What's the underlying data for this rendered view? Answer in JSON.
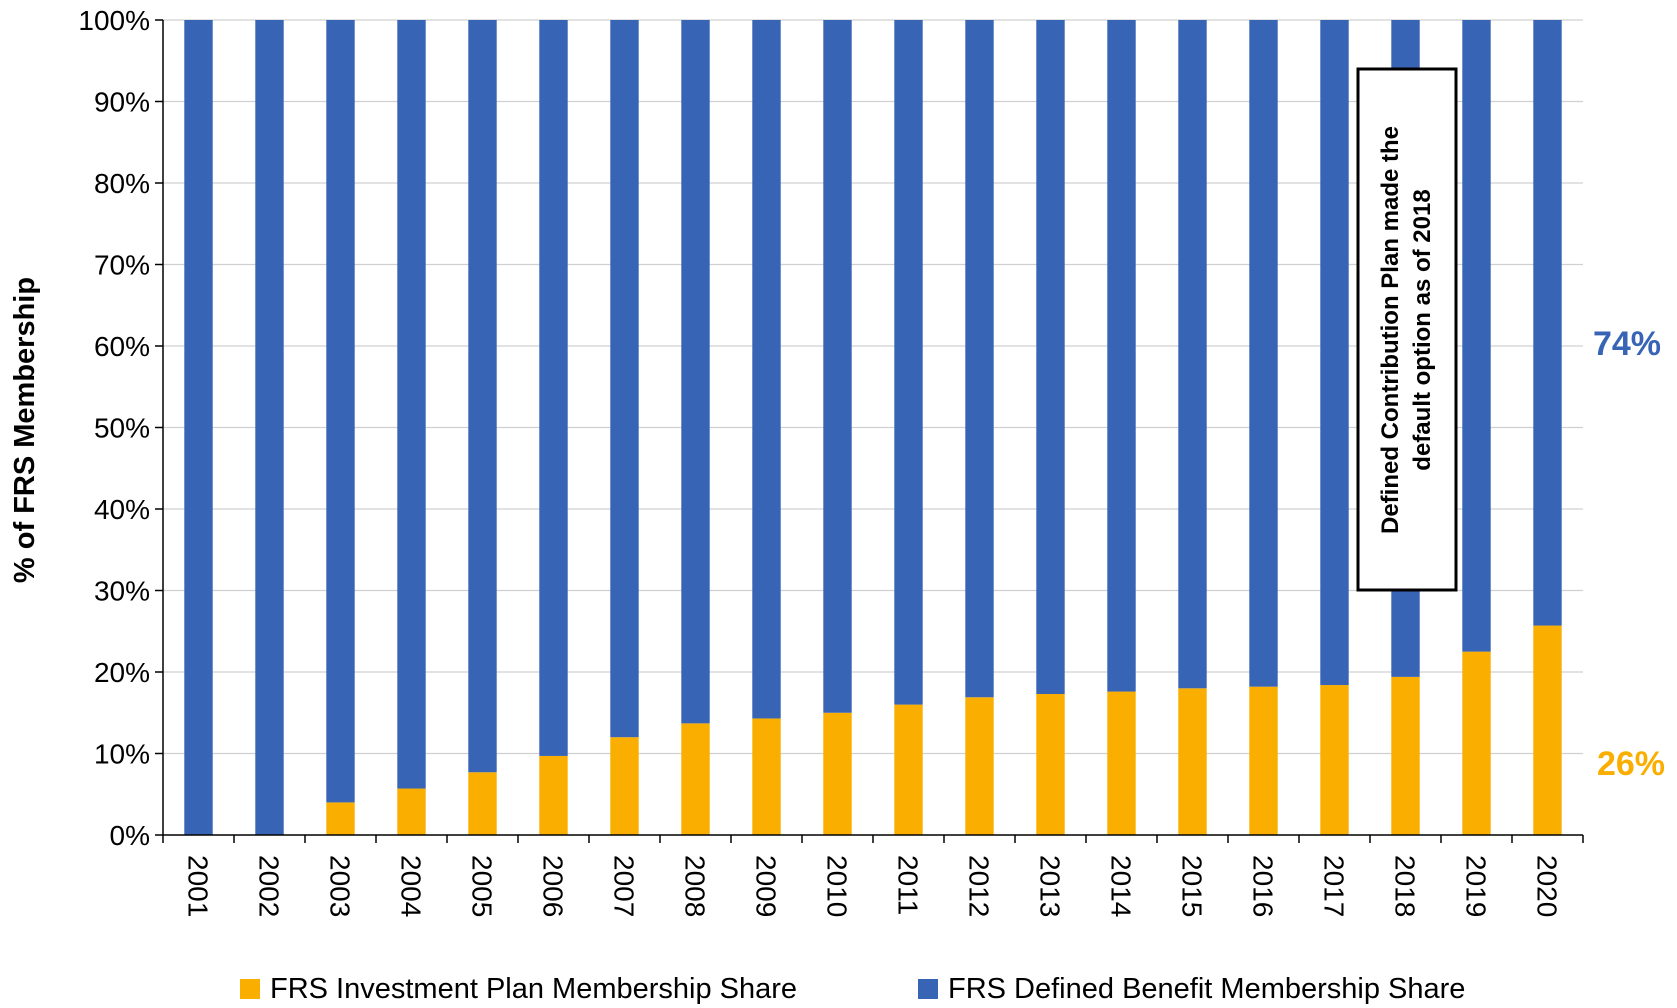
{
  "chart_data": {
    "type": "bar",
    "stacked": true,
    "categories": [
      "2001",
      "2002",
      "2003",
      "2004",
      "2005",
      "2006",
      "2007",
      "2008",
      "2009",
      "2010",
      "2011",
      "2012",
      "2013",
      "2014",
      "2015",
      "2016",
      "2017",
      "2018",
      "2019",
      "2020"
    ],
    "series": [
      {
        "name": "FRS Investment Plan Membership Share",
        "color": "#F9AE00",
        "values": [
          0,
          0,
          4.0,
          5.7,
          7.7,
          9.7,
          12.0,
          13.7,
          14.3,
          15.0,
          16.0,
          16.9,
          17.3,
          17.6,
          18.0,
          18.2,
          18.4,
          19.4,
          22.5,
          25.7
        ]
      },
      {
        "name": "FRS Defined Benefit Membership Share",
        "color": "#3764B5",
        "values": [
          100,
          100,
          96.0,
          94.3,
          92.3,
          90.3,
          88.0,
          86.3,
          85.7,
          85.0,
          84.0,
          83.1,
          82.7,
          82.4,
          82.0,
          81.8,
          81.6,
          80.6,
          77.5,
          74.3
        ]
      }
    ],
    "ylabel": "% of FRS Membership",
    "xlabel": "",
    "ylim": [
      0,
      100
    ],
    "yticks": [
      "0%",
      "10%",
      "20%",
      "30%",
      "40%",
      "50%",
      "60%",
      "70%",
      "80%",
      "90%",
      "100%"
    ],
    "grid": true,
    "legend_position": "bottom",
    "end_labels": {
      "top": "74%",
      "bottom": "26%"
    },
    "annotation": {
      "lines": [
        "Defined Contribution Plan made the",
        "default option as of 2018"
      ]
    }
  }
}
